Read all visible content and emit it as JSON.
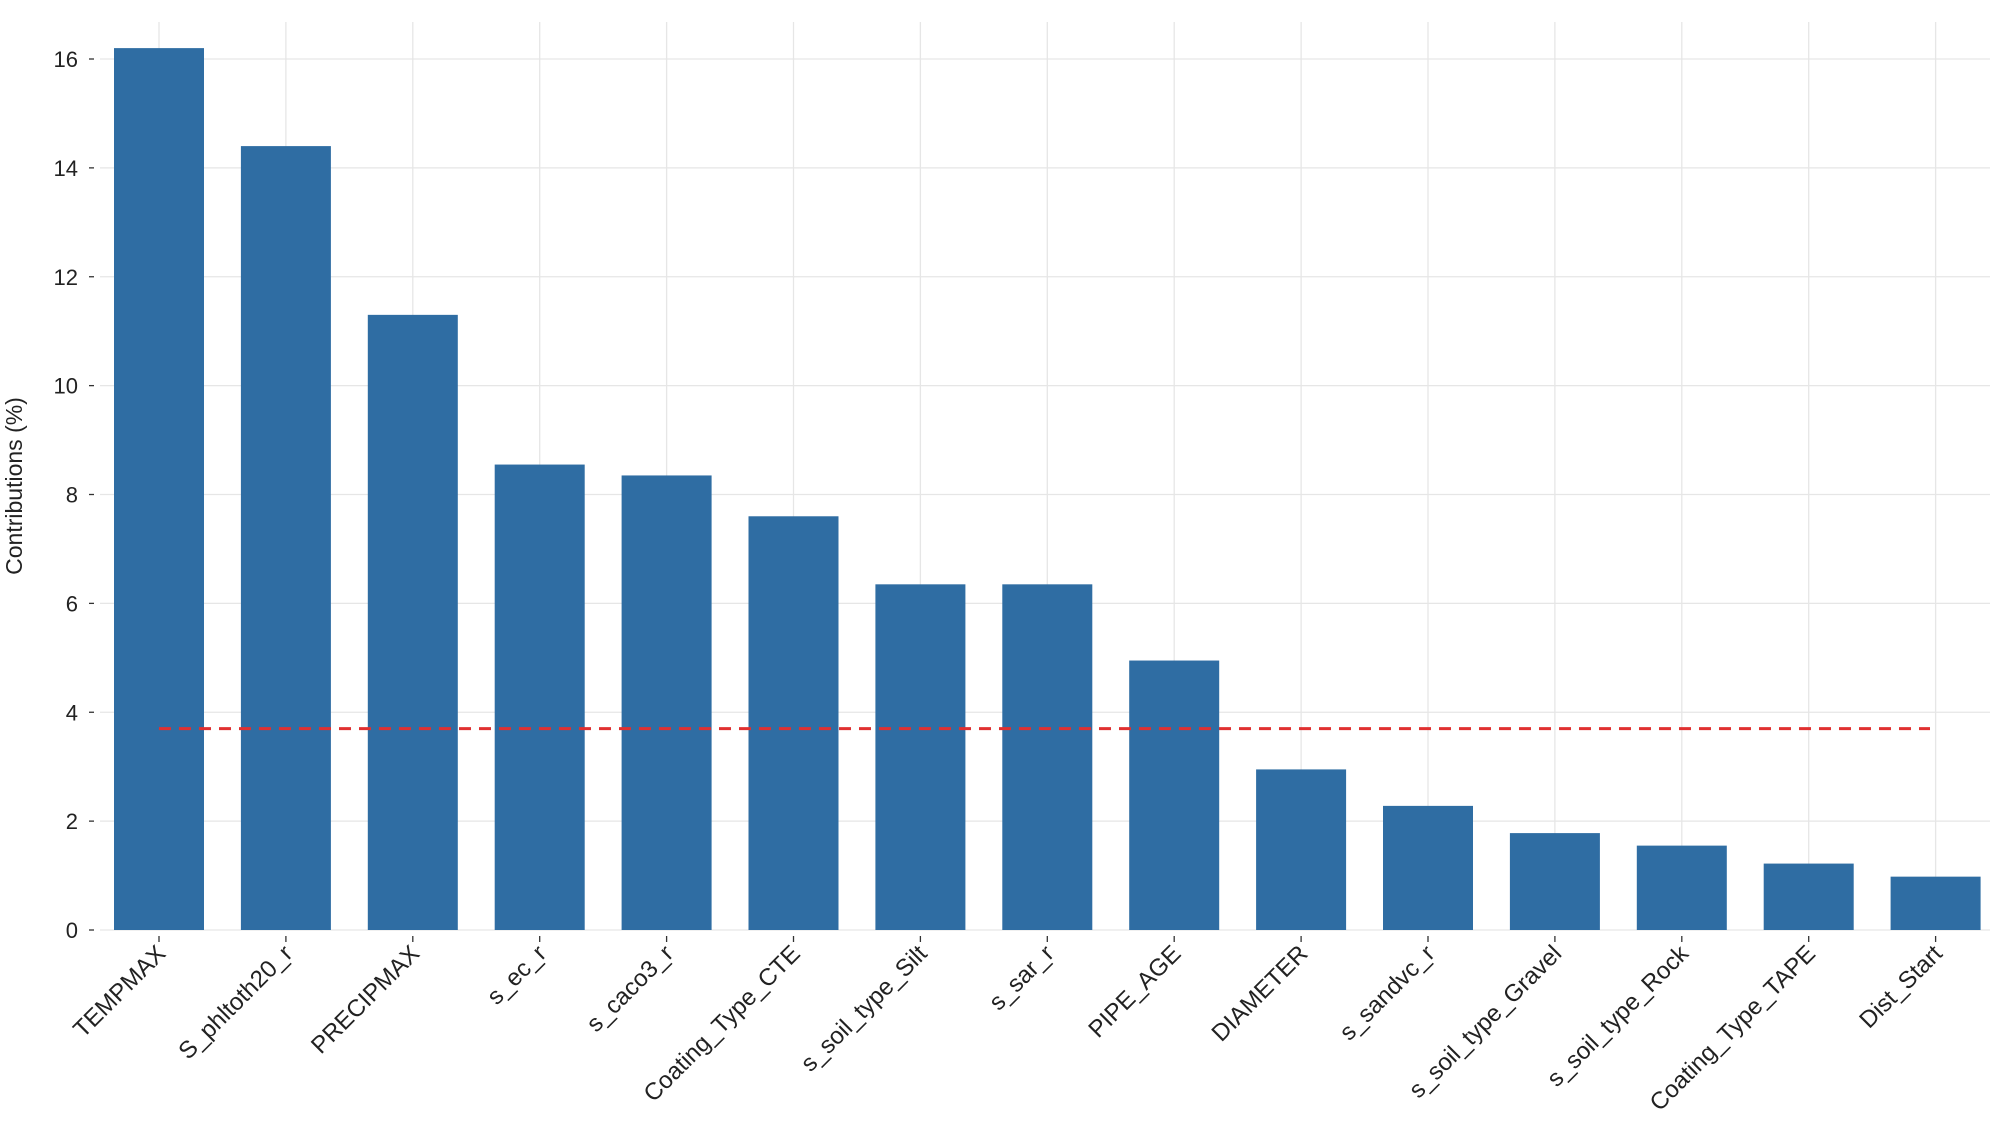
{
  "chart_data": {
    "type": "bar",
    "title": "",
    "xlabel": "",
    "ylabel": "Contributions (%)",
    "ylim": [
      0,
      16.5
    ],
    "yticks": [
      0,
      2,
      4,
      6,
      8,
      10,
      12,
      14,
      16
    ],
    "grid": true,
    "categories": [
      "TEMPMAX",
      "S_phltoth20_r",
      "PRECIPMAX",
      "s_ec_r",
      "s_caco3_r",
      "Coating_Type_CTE",
      "s_soil_type_Silt",
      "s_sar_r",
      "PIPE_AGE",
      "DIAMETER",
      "s_sandvc_r",
      "s_soil_type_Gravel",
      "s_soil_type_Rock",
      "Coating_Type_TAPE",
      "Dist_Start"
    ],
    "values": [
      16.2,
      14.4,
      11.3,
      8.55,
      8.35,
      7.6,
      6.35,
      6.35,
      4.95,
      2.95,
      2.28,
      1.78,
      1.55,
      1.22,
      0.98
    ],
    "reference_line": {
      "value": 3.7,
      "style": "dashed",
      "color": "#e03030"
    },
    "colors": {
      "bar": "#2f6da3",
      "grid": "#e6e6e6",
      "text": "#222222"
    }
  }
}
